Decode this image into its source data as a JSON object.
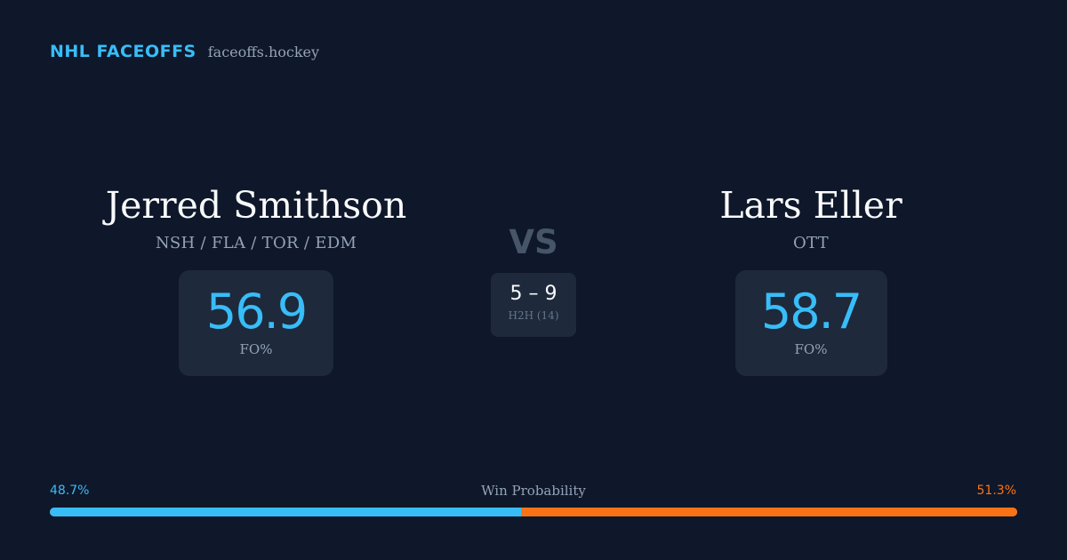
{
  "brand": {
    "title": "NHL FACEOFFS",
    "domain": "faceoffs.hockey"
  },
  "player_left": {
    "name": "Jerred Smithson",
    "teams": "NSH / FLA / TOR / EDM",
    "fo_pct": "56.9",
    "fo_label": "FO%"
  },
  "player_right": {
    "name": "Lars Eller",
    "teams": "OTT",
    "fo_pct": "58.7",
    "fo_label": "FO%"
  },
  "vs_label": "VS",
  "head_to_head": {
    "score": "5 – 9",
    "label": "H2H (14)"
  },
  "win_probability": {
    "title": "Win Probability",
    "left_label": "48.7%",
    "right_label": "51.3%",
    "left_value": 48.7,
    "right_value": 51.3
  },
  "colors": {
    "background": "#0f172a",
    "card": "#1e293b",
    "accent_blue": "#38bdf8",
    "accent_orange": "#f97316",
    "muted_text": "#94a3b8"
  }
}
